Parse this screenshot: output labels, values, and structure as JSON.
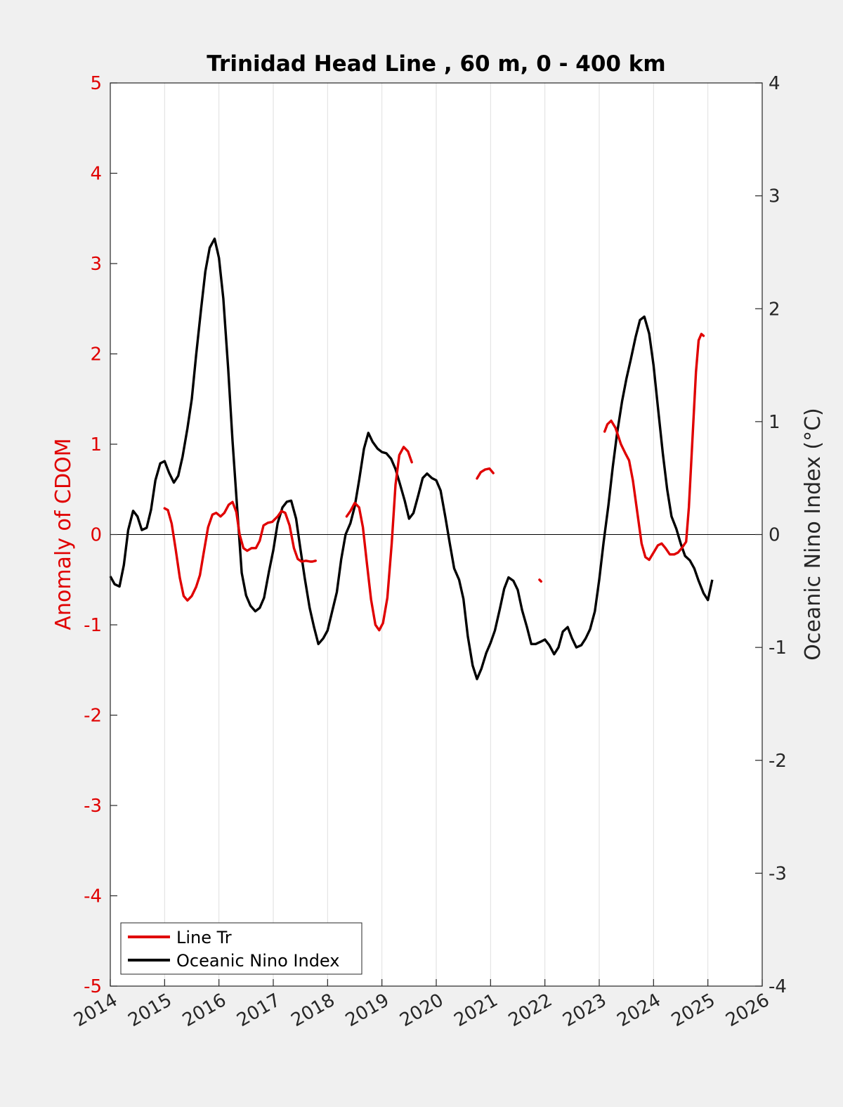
{
  "chart_data": {
    "type": "line",
    "title": "Trinidad Head Line , 60 m, 0 - 400 km",
    "ylabel_left": "Anomaly of CDOM",
    "ylabel_right": "Oceanic Nino Index (°C)",
    "xlim": [
      2014,
      2026
    ],
    "ylim_left": [
      -5,
      5
    ],
    "ylim_right": [
      -4,
      4
    ],
    "x_ticks": [
      2014,
      2015,
      2016,
      2017,
      2018,
      2019,
      2020,
      2021,
      2022,
      2023,
      2024,
      2025,
      2026
    ],
    "x_tick_labels": [
      "2014",
      "2015",
      "2016",
      "2017",
      "2018",
      "2019",
      "2020",
      "2021",
      "2022",
      "2023",
      "2024",
      "2025",
      "2026"
    ],
    "y_ticks_left": [
      5,
      4,
      3,
      2,
      1,
      0,
      -1,
      -2,
      -3,
      -4,
      -5
    ],
    "y_tick_labels_left": [
      "5",
      "4",
      "3",
      "2",
      "1",
      "0",
      "-1",
      "-2",
      "-3",
      "-4",
      "-5"
    ],
    "y_ticks_right": [
      4,
      3,
      2,
      1,
      0,
      -1,
      -2,
      -3,
      -4
    ],
    "y_tick_labels_right": [
      "4",
      "3",
      "2",
      "1",
      "0",
      "-1",
      "-2",
      "-3",
      "-4"
    ],
    "grid": "vertical",
    "zero_line": true,
    "legend_position": "bottom-left",
    "colors": {
      "line_tr": "#e00000",
      "oni": "#000000",
      "left_axis": "#e00000",
      "right_axis": "#262626"
    },
    "series": [
      {
        "name": "Line Tr",
        "axis": "left",
        "segments": [
          [
            [
              2015.0,
              0.29
            ],
            [
              2015.06,
              0.27
            ],
            [
              2015.13,
              0.12
            ],
            [
              2015.2,
              -0.15
            ],
            [
              2015.28,
              -0.48
            ],
            [
              2015.35,
              -0.68
            ],
            [
              2015.42,
              -0.73
            ],
            [
              2015.5,
              -0.68
            ],
            [
              2015.58,
              -0.58
            ],
            [
              2015.65,
              -0.45
            ],
            [
              2015.72,
              -0.2
            ],
            [
              2015.8,
              0.08
            ],
            [
              2015.88,
              0.22
            ],
            [
              2015.95,
              0.24
            ],
            [
              2016.03,
              0.2
            ],
            [
              2016.1,
              0.24
            ],
            [
              2016.18,
              0.33
            ],
            [
              2016.25,
              0.36
            ],
            [
              2016.32,
              0.25
            ],
            [
              2016.38,
              0.0
            ],
            [
              2016.45,
              -0.15
            ],
            [
              2016.52,
              -0.18
            ],
            [
              2016.6,
              -0.15
            ],
            [
              2016.68,
              -0.15
            ],
            [
              2016.75,
              -0.07
            ],
            [
              2016.82,
              0.1
            ],
            [
              2016.9,
              0.13
            ],
            [
              2016.98,
              0.14
            ],
            [
              2017.08,
              0.2
            ],
            [
              2017.15,
              0.26
            ],
            [
              2017.22,
              0.24
            ],
            [
              2017.3,
              0.1
            ],
            [
              2017.38,
              -0.15
            ],
            [
              2017.45,
              -0.27
            ],
            [
              2017.52,
              -0.3
            ],
            [
              2017.6,
              -0.29
            ],
            [
              2017.68,
              -0.3
            ],
            [
              2017.72,
              -0.3
            ],
            [
              2017.78,
              -0.29
            ]
          ],
          [
            [
              2018.35,
              0.2
            ],
            [
              2018.42,
              0.26
            ],
            [
              2018.5,
              0.35
            ],
            [
              2018.58,
              0.3
            ],
            [
              2018.65,
              0.08
            ],
            [
              2018.72,
              -0.3
            ],
            [
              2018.8,
              -0.72
            ],
            [
              2018.88,
              -1.0
            ],
            [
              2018.95,
              -1.06
            ],
            [
              2019.02,
              -0.98
            ],
            [
              2019.1,
              -0.7
            ],
            [
              2019.18,
              -0.1
            ],
            [
              2019.25,
              0.55
            ],
            [
              2019.32,
              0.88
            ],
            [
              2019.4,
              0.97
            ],
            [
              2019.48,
              0.92
            ],
            [
              2019.55,
              0.8
            ]
          ],
          [
            [
              2020.75,
              0.62
            ],
            [
              2020.82,
              0.69
            ],
            [
              2020.9,
              0.72
            ],
            [
              2020.98,
              0.73
            ],
            [
              2021.05,
              0.68
            ]
          ],
          [
            [
              2021.9,
              -0.5
            ],
            [
              2021.93,
              -0.52
            ]
          ],
          [
            [
              2023.1,
              1.14
            ],
            [
              2023.15,
              1.22
            ],
            [
              2023.22,
              1.26
            ],
            [
              2023.3,
              1.18
            ],
            [
              2023.4,
              1.0
            ],
            [
              2023.48,
              0.9
            ],
            [
              2023.55,
              0.82
            ],
            [
              2023.62,
              0.6
            ],
            [
              2023.7,
              0.25
            ],
            [
              2023.78,
              -0.1
            ],
            [
              2023.85,
              -0.25
            ],
            [
              2023.92,
              -0.28
            ],
            [
              2024.0,
              -0.2
            ],
            [
              2024.08,
              -0.12
            ],
            [
              2024.15,
              -0.1
            ],
            [
              2024.22,
              -0.15
            ],
            [
              2024.3,
              -0.22
            ],
            [
              2024.38,
              -0.22
            ],
            [
              2024.45,
              -0.2
            ],
            [
              2024.52,
              -0.15
            ],
            [
              2024.6,
              -0.08
            ],
            [
              2024.65,
              0.3
            ],
            [
              2024.72,
              1.1
            ],
            [
              2024.78,
              1.8
            ],
            [
              2024.83,
              2.15
            ],
            [
              2024.88,
              2.22
            ],
            [
              2024.92,
              2.2
            ]
          ]
        ]
      },
      {
        "name": "Oceanic Nino Index",
        "axis": "right",
        "x": [
          2014.0,
          2014.08,
          2014.17,
          2014.25,
          2014.33,
          2014.42,
          2014.5,
          2014.58,
          2014.67,
          2014.75,
          2014.83,
          2014.92,
          2015.0,
          2015.08,
          2015.17,
          2015.25,
          2015.33,
          2015.42,
          2015.5,
          2015.58,
          2015.67,
          2015.75,
          2015.83,
          2015.92,
          2016.0,
          2016.08,
          2016.17,
          2016.25,
          2016.33,
          2016.42,
          2016.5,
          2016.58,
          2016.67,
          2016.75,
          2016.83,
          2016.92,
          2017.0,
          2017.08,
          2017.17,
          2017.25,
          2017.33,
          2017.42,
          2017.5,
          2017.58,
          2017.67,
          2017.75,
          2017.83,
          2017.92,
          2018.0,
          2018.08,
          2018.17,
          2018.25,
          2018.33,
          2018.42,
          2018.5,
          2018.58,
          2018.67,
          2018.75,
          2018.83,
          2018.92,
          2019.0,
          2019.08,
          2019.17,
          2019.25,
          2019.33,
          2019.42,
          2019.5,
          2019.58,
          2019.67,
          2019.75,
          2019.83,
          2019.92,
          2020.0,
          2020.08,
          2020.17,
          2020.25,
          2020.33,
          2020.42,
          2020.5,
          2020.58,
          2020.67,
          2020.75,
          2020.83,
          2020.92,
          2021.0,
          2021.08,
          2021.17,
          2021.25,
          2021.33,
          2021.42,
          2021.5,
          2021.58,
          2021.67,
          2021.75,
          2021.83,
          2021.92,
          2022.0,
          2022.08,
          2022.17,
          2022.25,
          2022.33,
          2022.42,
          2022.5,
          2022.58,
          2022.67,
          2022.75,
          2022.83,
          2022.92,
          2023.0,
          2023.08,
          2023.17,
          2023.25,
          2023.33,
          2023.42,
          2023.5,
          2023.58,
          2023.67,
          2023.75,
          2023.83,
          2023.92,
          2024.0,
          2024.08,
          2024.17,
          2024.25,
          2024.33,
          2024.42,
          2024.5,
          2024.58,
          2024.67,
          2024.75,
          2024.83,
          2024.92,
          2025.0,
          2025.08
        ],
        "values": [
          -0.37,
          -0.44,
          -0.46,
          -0.27,
          0.04,
          0.21,
          0.16,
          0.04,
          0.06,
          0.22,
          0.48,
          0.63,
          0.65,
          0.55,
          0.46,
          0.52,
          0.69,
          0.94,
          1.2,
          1.59,
          1.99,
          2.33,
          2.54,
          2.62,
          2.45,
          2.09,
          1.47,
          0.83,
          0.27,
          -0.34,
          -0.54,
          -0.63,
          -0.68,
          -0.65,
          -0.56,
          -0.33,
          -0.14,
          0.1,
          0.24,
          0.29,
          0.3,
          0.14,
          -0.13,
          -0.39,
          -0.65,
          -0.82,
          -0.97,
          -0.92,
          -0.85,
          -0.69,
          -0.51,
          -0.22,
          0.0,
          0.1,
          0.25,
          0.48,
          0.76,
          0.9,
          0.82,
          0.76,
          0.73,
          0.72,
          0.67,
          0.58,
          0.45,
          0.3,
          0.14,
          0.19,
          0.35,
          0.5,
          0.54,
          0.5,
          0.48,
          0.39,
          0.15,
          -0.08,
          -0.3,
          -0.4,
          -0.57,
          -0.9,
          -1.16,
          -1.28,
          -1.19,
          -1.05,
          -0.96,
          -0.85,
          -0.66,
          -0.48,
          -0.38,
          -0.41,
          -0.49,
          -0.67,
          -0.82,
          -0.97,
          -0.97,
          -0.95,
          -0.93,
          -0.98,
          -1.06,
          -1.0,
          -0.86,
          -0.82,
          -0.92,
          -1.0,
          -0.98,
          -0.92,
          -0.84,
          -0.68,
          -0.4,
          -0.07,
          0.26,
          0.6,
          0.9,
          1.18,
          1.38,
          1.55,
          1.75,
          1.9,
          1.93,
          1.78,
          1.5,
          1.13,
          0.72,
          0.4,
          0.16,
          0.05,
          -0.08,
          -0.19,
          -0.23,
          -0.3,
          -0.41,
          -0.52,
          -0.58,
          -0.4
        ]
      }
    ]
  }
}
